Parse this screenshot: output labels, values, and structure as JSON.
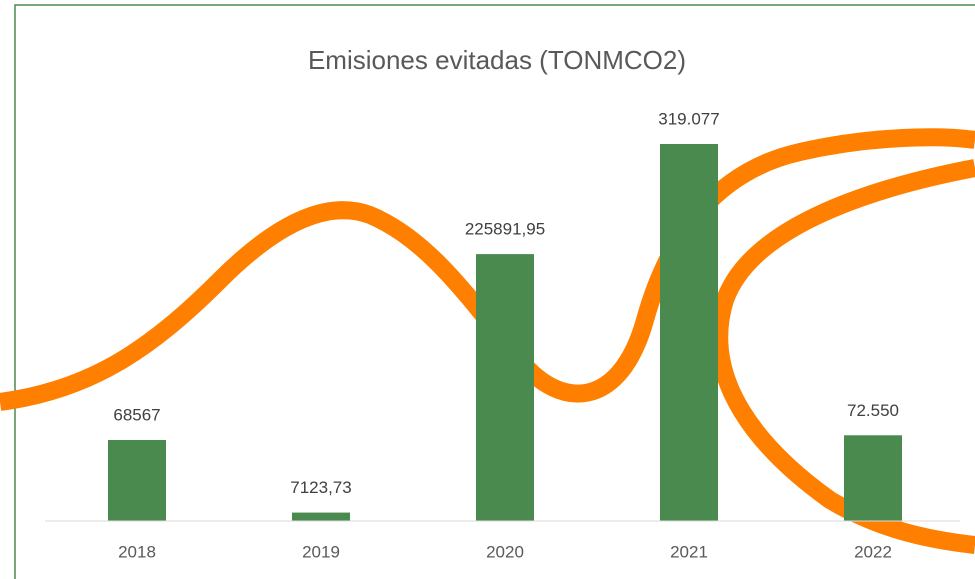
{
  "chart_data": {
    "type": "bar",
    "title": "Emisiones evitadas (TONMCO2)",
    "categories": [
      "2018",
      "2019",
      "2020",
      "2021",
      "2022"
    ],
    "values": [
      68567,
      7123.73,
      225891.95,
      319077,
      72550
    ],
    "value_labels": [
      "68567",
      "7123,73",
      "225891,95",
      "319.077",
      "72.550"
    ],
    "color": "#4a8a4e"
  }
}
